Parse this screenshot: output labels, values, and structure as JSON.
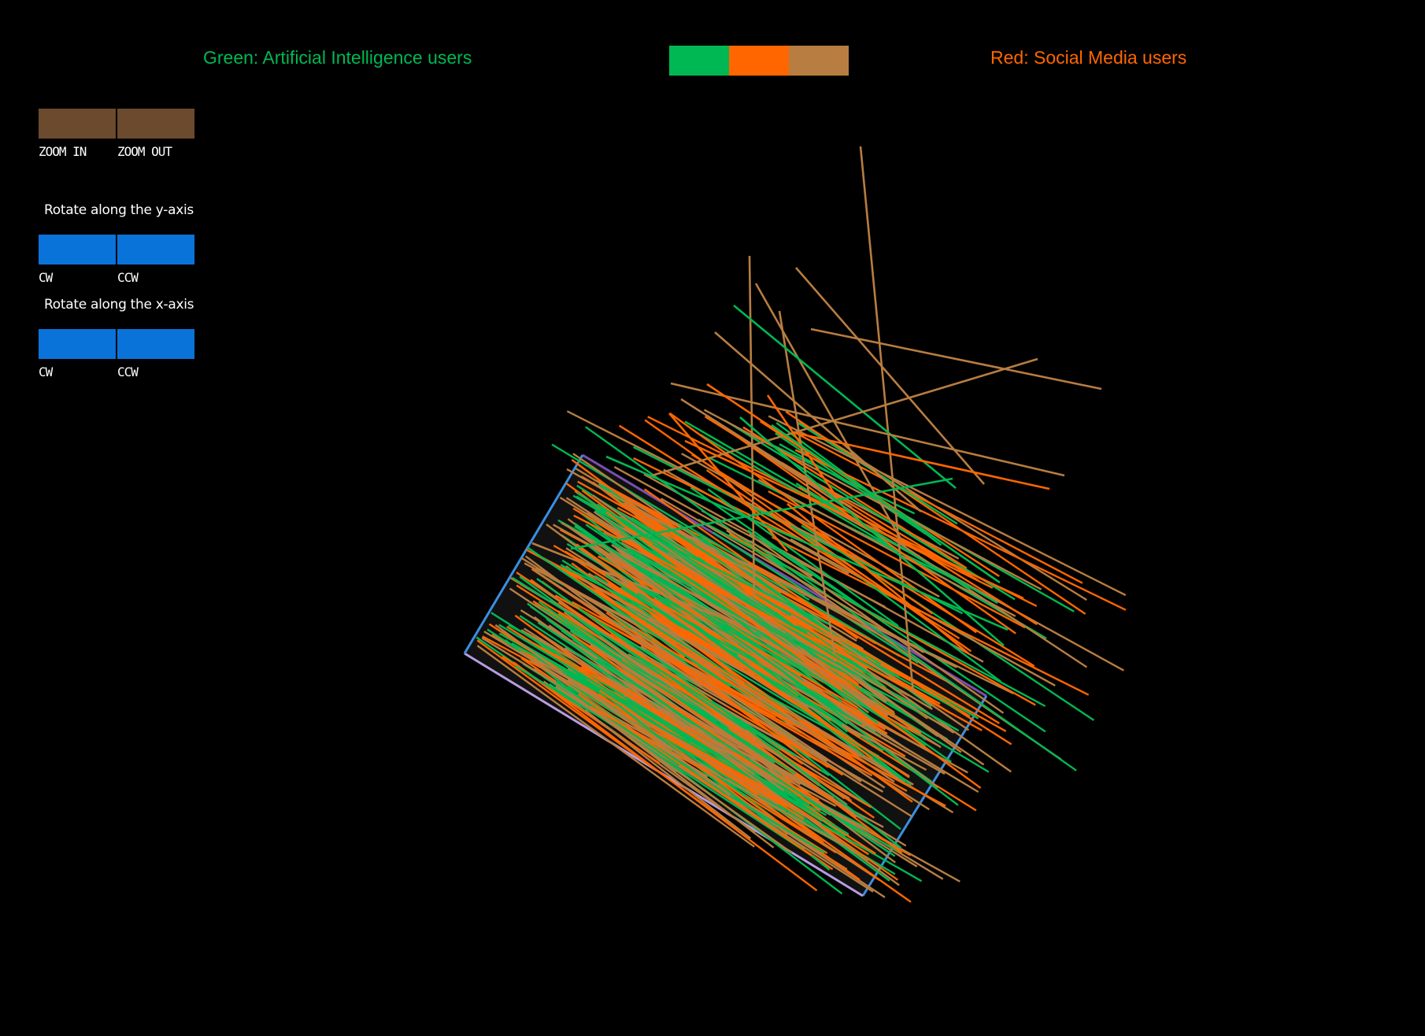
{
  "legend": {
    "green_label": "Green: Artificial Intelligence users",
    "red_label": "Red: Social Media users",
    "green_color": "#00b853",
    "red_color": "#ff6600",
    "tan_color": "#b87d40"
  },
  "controls": {
    "zoom_in_label": "ZOOM IN",
    "zoom_out_label": "ZOOM OUT",
    "zoom_button_color": "#6b4a2e",
    "rotate_y_title": "Rotate along the y-axis",
    "rotate_x_title": "Rotate along the x-axis",
    "cw_label": "CW",
    "ccw_label": "CCW",
    "rotate_button_color": "#0a73d9"
  },
  "chart_data": {
    "type": "3d-line-plot",
    "series": [
      {
        "name": "Artificial Intelligence users",
        "color": "#00b853"
      },
      {
        "name": "Social Media users",
        "color": "#ff6600"
      }
    ]
  }
}
